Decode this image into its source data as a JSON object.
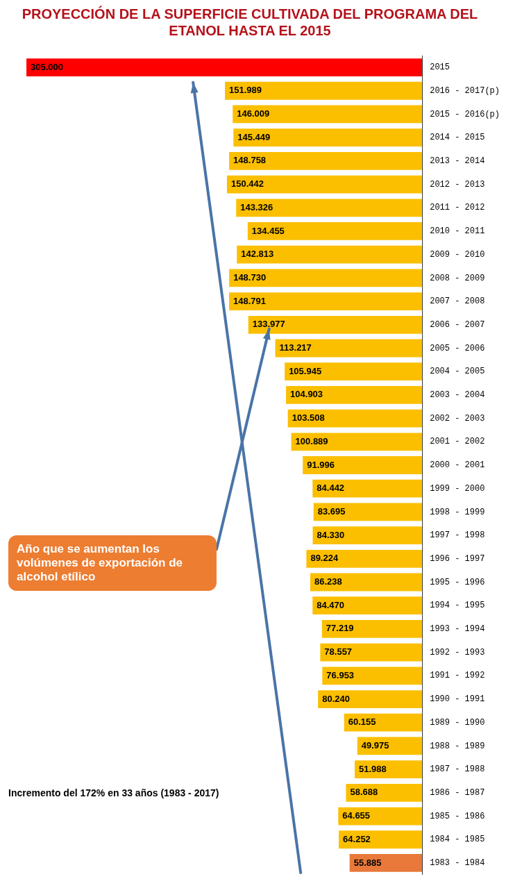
{
  "chart_data": {
    "type": "bar",
    "orientation": "horizontal",
    "title": "PROYECCIÓN DE LA SUPERFICIE CULTIVADA DEL PROGRAMA  DEL ETANOL HASTA EL 2015",
    "categories": [
      "2015",
      "2016 - 2017(p)",
      "2015 - 2016(p)",
      "2014 - 2015",
      "2013 - 2014",
      "2012 - 2013",
      "2011 - 2012",
      "2010 - 2011",
      "2009 - 2010",
      "2008 - 2009",
      "2007 - 2008",
      "2006 - 2007",
      "2005 - 2006",
      "2004 - 2005",
      "2003 - 2004",
      "2002 - 2003",
      "2001 - 2002",
      "2000 - 2001",
      "1999 - 2000",
      "1998 - 1999",
      "1997 - 1998",
      "1996 - 1997",
      "1995 - 1996",
      "1994 - 1995",
      "1993 - 1994",
      "1992 - 1993",
      "1991 - 1992",
      "1990 - 1991",
      "1989 - 1990",
      "1988 - 1989",
      "1987 - 1988",
      "1986 - 1987",
      "1985 - 1986",
      "1984 - 1985",
      "1983 - 1984"
    ],
    "values": [
      305000,
      151989,
      146009,
      145449,
      148758,
      150442,
      143326,
      134455,
      142813,
      148730,
      148791,
      133977,
      113217,
      105945,
      104903,
      103508,
      100889,
      91996,
      84442,
      83695,
      84330,
      89224,
      86238,
      84470,
      77219,
      78557,
      76953,
      80240,
      60155,
      49975,
      51988,
      58688,
      64655,
      64252,
      55885
    ],
    "value_labels": [
      "305.000",
      "151.989",
      "146.009",
      "145.449",
      "148.758",
      "150.442",
      "143.326",
      "134.455",
      "142.813",
      "148.730",
      "148.791",
      "133.977",
      "113.217",
      "105.945",
      "104.903",
      "103.508",
      "100.889",
      "91.996",
      "84.442",
      "83.695",
      "84.330",
      "89.224",
      "86.238",
      "84.470",
      "77.219",
      "78.557",
      "76.953",
      "80.240",
      "60.155",
      "49.975",
      "51.988",
      "58.688",
      "64.655",
      "64.252",
      "55.885"
    ],
    "colors": [
      "#ff0000",
      "#fbbf00",
      "#fbbf00",
      "#fbbf00",
      "#fbbf00",
      "#fbbf00",
      "#fbbf00",
      "#fbbf00",
      "#fbbf00",
      "#fbbf00",
      "#fbbf00",
      "#fbbf00",
      "#fbbf00",
      "#fbbf00",
      "#fbbf00",
      "#fbbf00",
      "#fbbf00",
      "#fbbf00",
      "#fbbf00",
      "#fbbf00",
      "#fbbf00",
      "#fbbf00",
      "#fbbf00",
      "#fbbf00",
      "#fbbf00",
      "#fbbf00",
      "#fbbf00",
      "#fbbf00",
      "#fbbf00",
      "#fbbf00",
      "#fbbf00",
      "#fbbf00",
      "#fbbf00",
      "#fbbf00",
      "#e8793a"
    ],
    "xlim": [
      320000,
      0
    ],
    "tick_labels": "y",
    "grid": false,
    "legend": false,
    "annotations": [
      "Incremento del 172% en 33 años (1983 - 2017)",
      "Año que se aumentan los volúmenes de exportación de alcohol etílico"
    ]
  }
}
